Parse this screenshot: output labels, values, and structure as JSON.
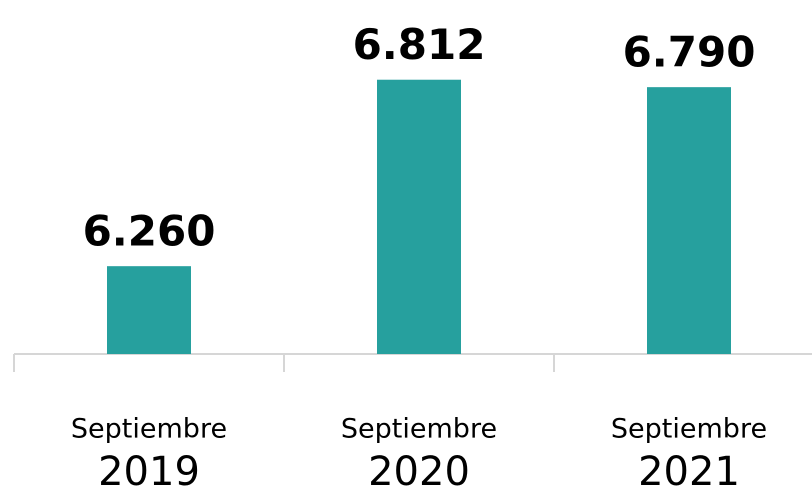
{
  "chart_data": {
    "type": "bar",
    "categories": [
      [
        "Septiembre",
        "2019"
      ],
      [
        "Septiembre",
        "2020"
      ],
      [
        "Septiembre",
        "2021"
      ]
    ],
    "values": [
      6260,
      6812,
      6790
    ],
    "value_labels": [
      "6.260",
      "6.812",
      "6.790"
    ],
    "color": "#26a09e",
    "ylim": [
      6000,
      6900
    ]
  }
}
